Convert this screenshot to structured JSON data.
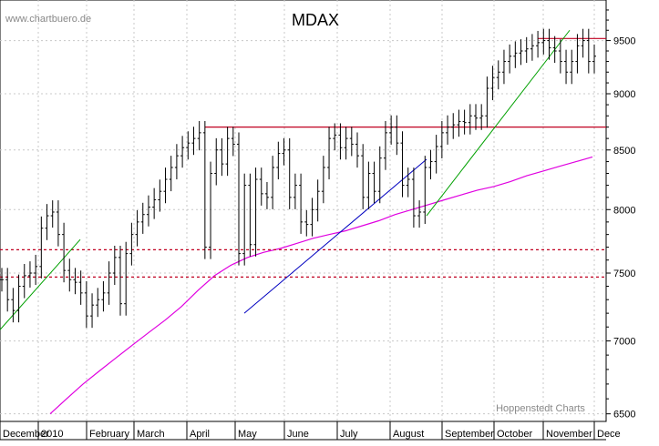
{
  "chart_data": {
    "type": "line",
    "title": "MDAX",
    "source_label": "www.chartbuero.de",
    "credit": "Hoppenstedt Charts",
    "y_axis": {
      "scale": "log",
      "ylim": [
        6450,
        9900
      ],
      "ticks": [
        6500,
        7000,
        7500,
        8000,
        8500,
        9000,
        9500
      ],
      "position": "right"
    },
    "x_axis": {
      "months": [
        "December",
        "2010",
        "February",
        "March",
        "April",
        "May",
        "June",
        "July",
        "August",
        "September",
        "October",
        "November",
        "Dece"
      ]
    },
    "grid": true,
    "series": [
      {
        "style": "bar-ohlc",
        "color": "#000000",
        "values": [
          7450,
          7300,
          7220,
          7400,
          7480,
          7500,
          7550,
          7850,
          7950,
          7980,
          7800,
          7520,
          7450,
          7430,
          7350,
          7180,
          7260,
          7300,
          7350,
          7500,
          7620,
          7270,
          7650,
          7800,
          7900,
          7960,
          8020,
          8080,
          8150,
          8250,
          8350,
          8450,
          8520,
          8560,
          8600,
          8650,
          7700,
          8300,
          8500,
          8380,
          8600,
          8550,
          7650,
          8200,
          7720,
          8250,
          8130,
          8100,
          8350,
          8470,
          8500,
          8100,
          8200,
          7900,
          7880,
          8000,
          8150,
          8350,
          8600,
          8630,
          8520,
          8600,
          8550,
          8450,
          8100,
          8300,
          8150,
          8430,
          8650,
          8700,
          8560,
          8200,
          8250,
          7950,
          7980,
          8350,
          8400,
          8530,
          8650,
          8700,
          8720,
          8750,
          8740,
          8800,
          8780,
          8800,
          9050,
          9150,
          9200,
          9300,
          9350,
          9380,
          9400,
          9420,
          9450,
          9480,
          9500,
          9430,
          9400,
          9300,
          9200,
          9300,
          9450,
          9500,
          9300,
          9350
        ]
      },
      {
        "style": "line",
        "color": "#e000e0",
        "description": "200-day moving average",
        "values": [
          6500,
          6600,
          6700,
          6790,
          6880,
          6970,
          7060,
          7150,
          7250,
          7370,
          7480,
          7560,
          7620,
          7660,
          7690,
          7730,
          7770,
          7800,
          7830,
          7870,
          7910,
          7960,
          8000,
          8040,
          8080,
          8120,
          8160,
          8190,
          8230,
          8280,
          8320,
          8360,
          8400,
          8440
        ]
      }
    ],
    "annotations": {
      "horizontal_lines": [
        {
          "value": 8700,
          "color": "#c00020",
          "style": "solid"
        },
        {
          "value": 9520,
          "color": "#c00020",
          "style": "solid"
        },
        {
          "value": 7680,
          "color": "#c00020",
          "style": "dashed"
        },
        {
          "value": 7470,
          "color": "#c00020",
          "style": "dashed"
        }
      ],
      "trend_lines": [
        {
          "color": "#00a000",
          "from_value": 7080,
          "to_value": 7760
        },
        {
          "color": "#0000c0",
          "from_value": 7200,
          "to_value": 8420
        },
        {
          "color": "#00a000",
          "from_value": 7950,
          "to_value": 9600
        }
      ]
    }
  }
}
